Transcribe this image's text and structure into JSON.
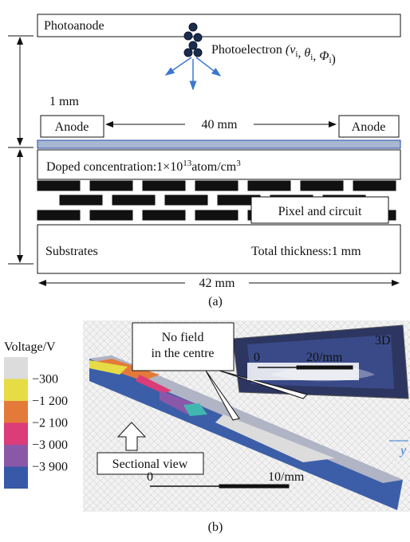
{
  "panel_a": {
    "photoanode": "Photoanode",
    "photoelectron": {
      "text": "Photoelectron",
      "symbols": [
        {
          "base": "(v",
          "sub": "i"
        },
        {
          "base": ", θ",
          "sub": "i"
        },
        {
          "base": ", Φ",
          "sub": "i"
        }
      ],
      "close": ")"
    },
    "gap_label": "1 mm",
    "anodes": [
      "Anode",
      "Anode"
    ],
    "anode_spacing": "40 mm",
    "doped": {
      "text": "Doped concentration:1×10",
      "exp": "13",
      "unit": "atom/cm",
      "unit_exp": "3"
    },
    "pixel": "Pixel and circuit",
    "substrates": "Substrates",
    "thickness": "Total thickness:1 mm",
    "width": "42 mm",
    "caption": "(a)"
  },
  "panel_b": {
    "legend_title": "Voltage/V",
    "legend_labels": [
      "−300",
      "−1 200",
      "−2 100",
      "−3 000",
      "−3 900"
    ],
    "legend_colors": [
      "#dcdcdc",
      "#e6dc46",
      "#e47a3a",
      "#dc3c78",
      "#8a58a8",
      "#3858a8"
    ],
    "callout": [
      "No field",
      "in the centre"
    ],
    "view_3d": "3D",
    "scale_3d": [
      "0",
      "20/mm"
    ],
    "sectional": "Sectional view",
    "scale_2d": [
      "0",
      "10/mm"
    ],
    "axis": "y",
    "caption": "(b)"
  }
}
